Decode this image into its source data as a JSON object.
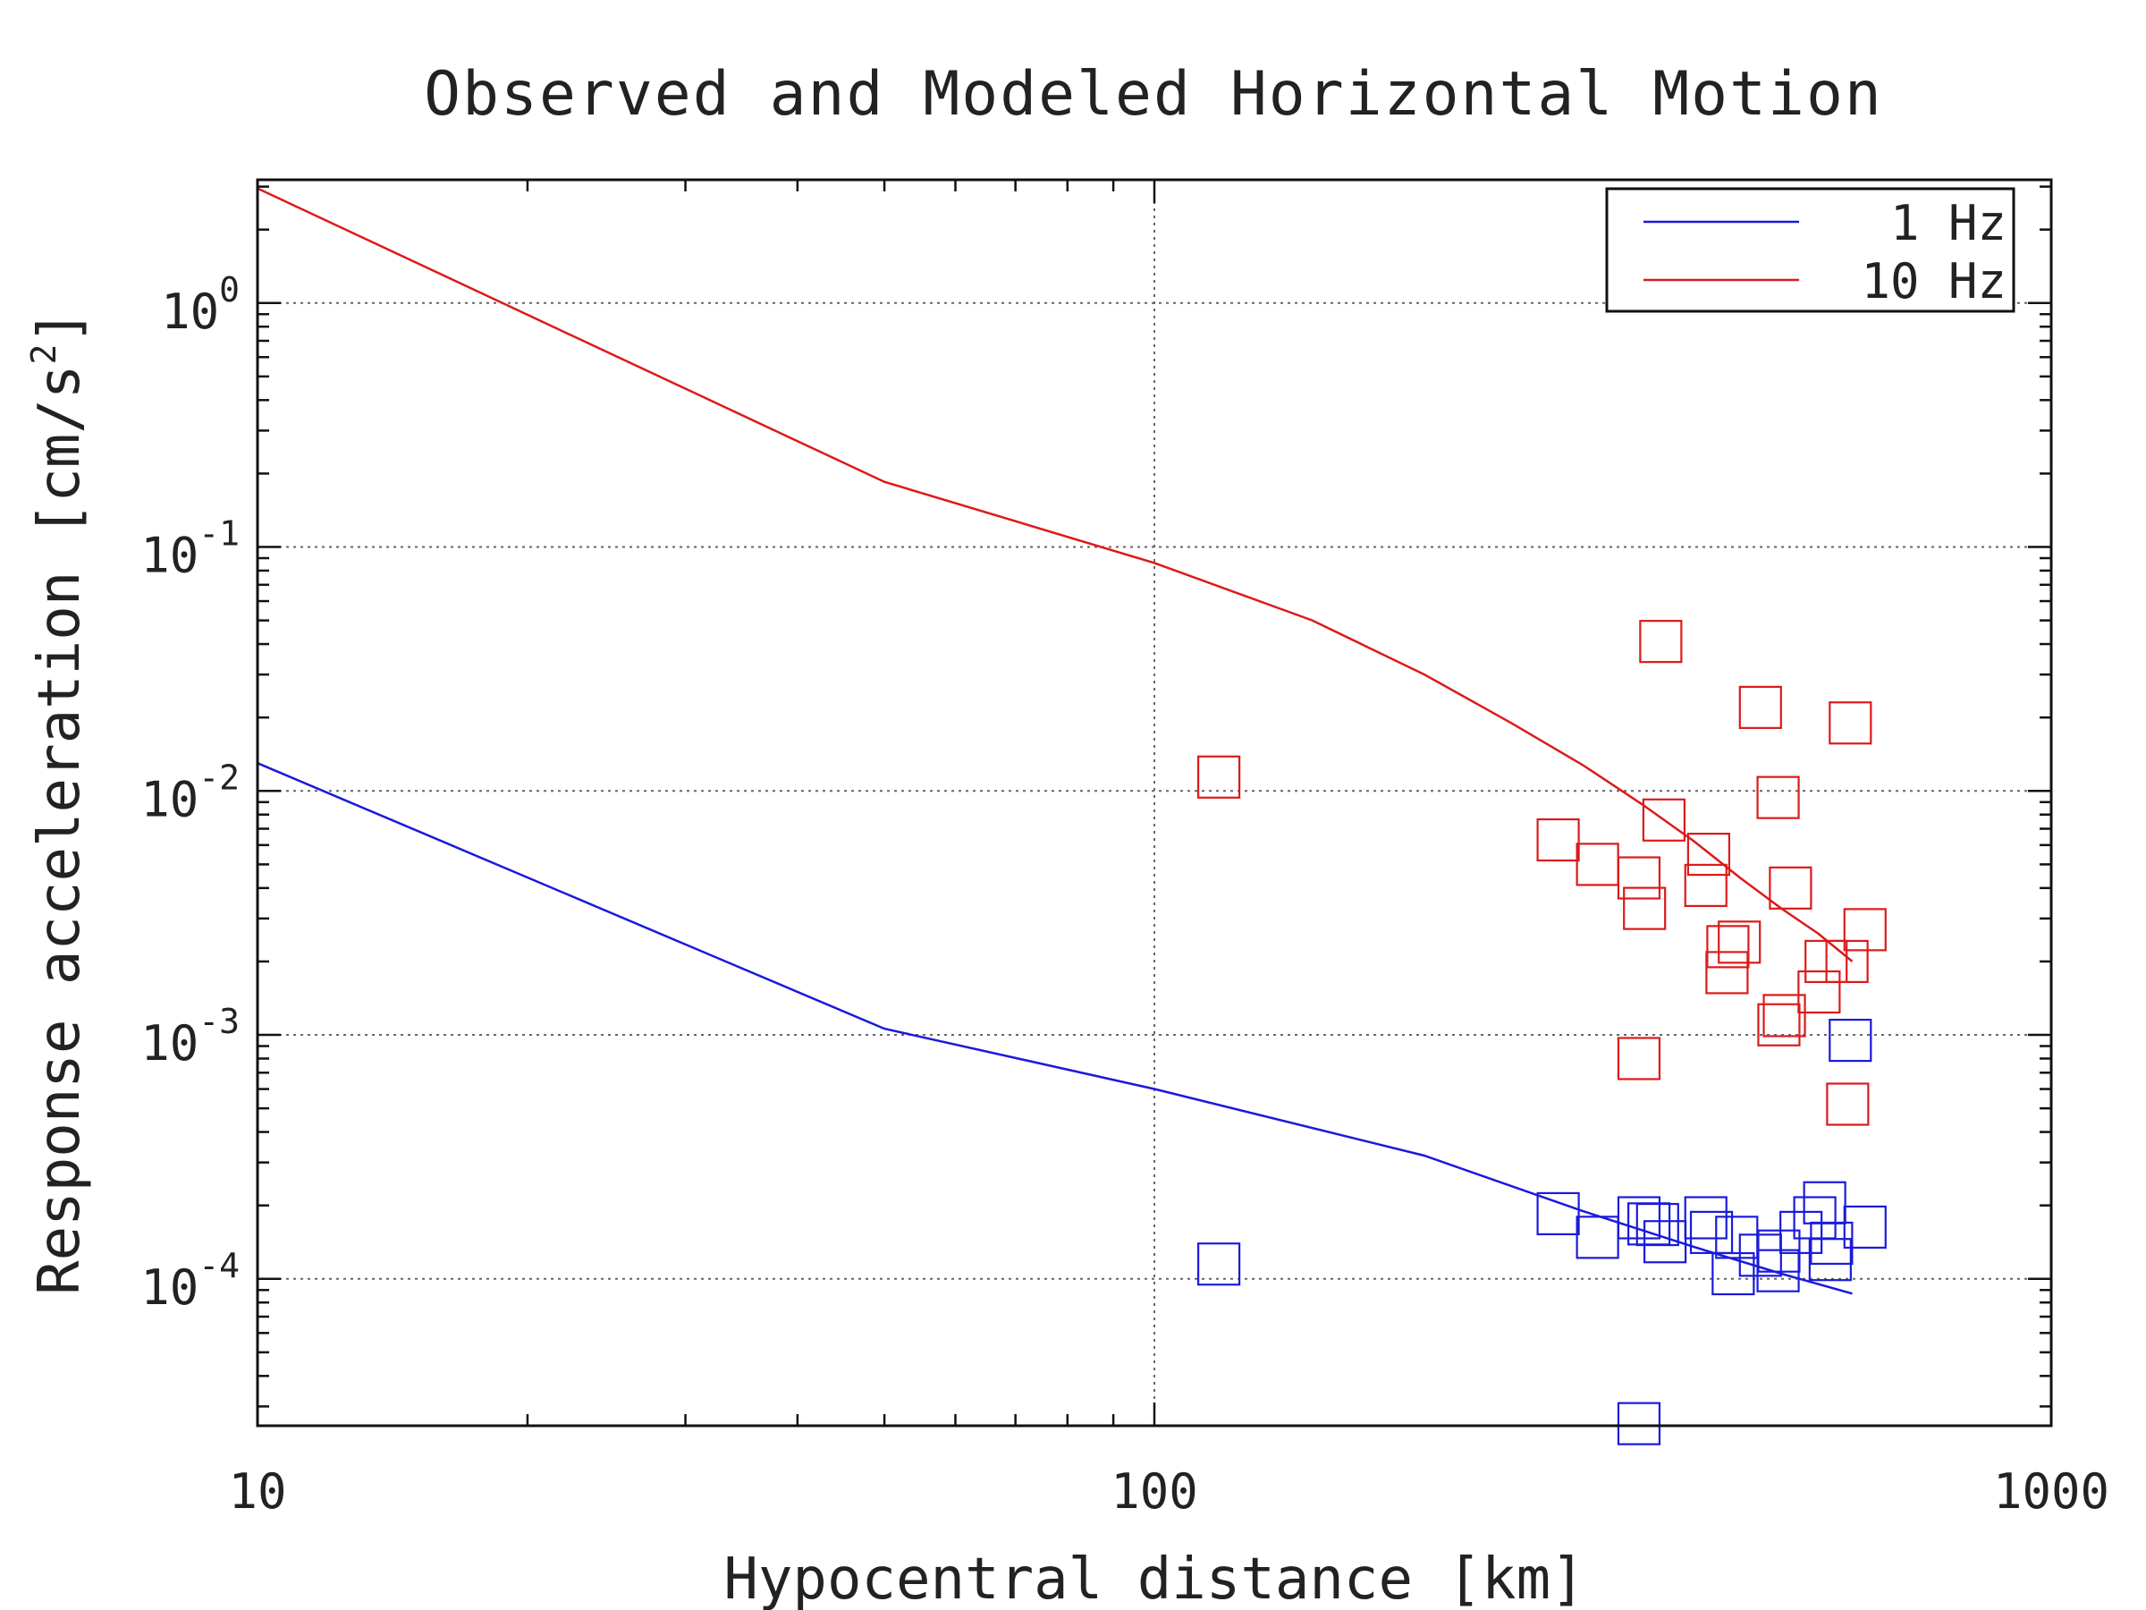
{
  "chart_data": {
    "type": "scatter",
    "title": "Observed and Modeled Horizontal Motion",
    "xlabel": "Hypocentral distance [km]",
    "ylabel": "Response acceleration [cm/s",
    "ylabel_exp": "2",
    "ylabel_end": "]",
    "x_scale": "log",
    "y_scale": "log",
    "xlim": [
      10,
      1000
    ],
    "ylim": [
      2.5e-05,
      3.2
    ],
    "x_ticks": [
      {
        "value": 10,
        "label": "10"
      },
      {
        "value": 100,
        "label": "100"
      },
      {
        "value": 1000,
        "label": "1000"
      }
    ],
    "y_ticks": [
      {
        "value": 1,
        "base": "10",
        "exp": "0"
      },
      {
        "value": 0.1,
        "base": "10",
        "exp": "-1"
      },
      {
        "value": 0.01,
        "base": "10",
        "exp": "-2"
      },
      {
        "value": 0.001,
        "base": "10",
        "exp": "-3"
      },
      {
        "value": 0.0001,
        "base": "10",
        "exp": "-4"
      }
    ],
    "grid": true,
    "legend_position": "top-right",
    "series": [
      {
        "name": "1 Hz",
        "kind": "line",
        "color": "#1a1adc",
        "x": [
          10,
          50,
          100,
          200,
          300,
          400,
          500,
          600
        ],
        "y": [
          0.013,
          0.00106,
          0.0006,
          0.00032,
          0.00019,
          0.000135,
          0.000105,
          8.7e-05
        ]
      },
      {
        "name": "10 Hz",
        "kind": "line",
        "color": "#dc1a1a",
        "x": [
          10,
          50,
          100,
          150,
          200,
          250,
          300,
          350,
          400,
          450,
          500,
          550,
          600
        ],
        "y": [
          2.95,
          0.185,
          0.086,
          0.05,
          0.03,
          0.019,
          0.0128,
          0.0088,
          0.0062,
          0.0044,
          0.0033,
          0.0026,
          0.002
        ]
      },
      {
        "name": "",
        "kind": "markers",
        "color": "#dc1a1a",
        "x": [
          118,
          367,
          474,
          597,
          496,
          370,
          415,
          282,
          312,
          347,
          352,
          412,
          512,
          436,
          449,
          435,
          561,
          551,
          620,
          504,
          497,
          592,
          347,
          593
        ],
        "y": [
          0.0114,
          0.041,
          0.022,
          0.019,
          0.0094,
          0.0076,
          0.0055,
          0.0063,
          0.005,
          0.0044,
          0.0033,
          0.0041,
          0.004,
          0.0023,
          0.0024,
          0.0018,
          0.002,
          0.0015,
          0.0027,
          0.0012,
          0.0011,
          0.002,
          0.0008,
          0.00052
        ]
      },
      {
        "name": "",
        "kind": "markers",
        "color": "#1a1adc",
        "x": [
          118,
          282,
          312,
          347,
          356,
          364,
          371,
          412,
          418,
          446,
          442,
          474,
          497,
          496,
          526,
          545,
          559,
          569,
          567,
          620,
          597,
          347
        ],
        "y": [
          0.000115,
          0.000185,
          0.000148,
          0.000178,
          0.000168,
          0.000167,
          0.000142,
          0.000178,
          0.000155,
          0.000148,
          0.000105,
          0.000125,
          0.00013,
          0.000108,
          0.000155,
          0.000178,
          0.000205,
          0.00014,
          0.00012,
          0.000163,
          0.00095,
          2.55e-05
        ]
      }
    ]
  }
}
